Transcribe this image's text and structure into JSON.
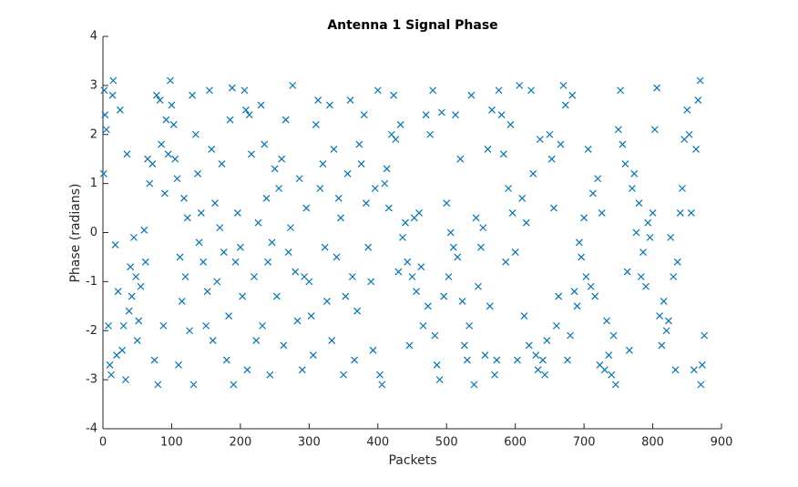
{
  "chart_data": {
    "type": "scatter",
    "title": "Antenna 1 Signal Phase",
    "xlabel": "Packets",
    "ylabel": "Phase (radians)",
    "color": "#0072bd",
    "marker": "x",
    "xlim": [
      0,
      900
    ],
    "xticks": [
      0,
      100,
      200,
      300,
      400,
      500,
      600,
      700,
      800,
      900
    ],
    "ylim": [
      -4,
      4
    ],
    "yticks": [
      -4,
      -3,
      -2,
      -1,
      0,
      1,
      2,
      3,
      4
    ],
    "x": [
      1,
      2,
      3,
      5,
      8,
      10,
      12,
      14,
      15,
      18,
      20,
      22,
      25,
      28,
      30,
      33,
      35,
      38,
      40,
      42,
      45,
      48,
      50,
      52,
      55,
      60,
      62,
      65,
      68,
      72,
      75,
      78,
      80,
      83,
      85,
      88,
      90,
      92,
      95,
      98,
      100,
      103,
      105,
      108,
      110,
      112,
      115,
      118,
      120,
      123,
      126,
      130,
      132,
      135,
      138,
      140,
      143,
      146,
      150,
      152,
      155,
      158,
      160,
      163,
      166,
      170,
      173,
      176,
      180,
      183,
      185,
      188,
      190,
      193,
      196,
      200,
      203,
      206,
      208,
      210,
      213,
      216,
      220,
      223,
      226,
      230,
      232,
      235,
      238,
      240,
      243,
      246,
      250,
      253,
      256,
      260,
      263,
      266,
      270,
      273,
      276,
      280,
      283,
      286,
      290,
      293,
      296,
      300,
      303,
      306,
      310,
      313,
      316,
      320,
      323,
      326,
      330,
      333,
      336,
      340,
      343,
      346,
      350,
      353,
      356,
      360,
      363,
      366,
      370,
      373,
      376,
      380,
      383,
      386,
      390,
      393,
      396,
      400,
      403,
      406,
      410,
      413,
      416,
      420,
      423,
      426,
      430,
      433,
      436,
      440,
      443,
      446,
      450,
      453,
      456,
      460,
      463,
      466,
      470,
      473,
      476,
      480,
      483,
      486,
      490,
      493,
      496,
      500,
      503,
      506,
      510,
      513,
      516,
      520,
      523,
      526,
      530,
      533,
      536,
      540,
      543,
      546,
      550,
      553,
      556,
      560,
      563,
      566,
      570,
      573,
      576,
      580,
      583,
      586,
      590,
      593,
      596,
      600,
      603,
      606,
      610,
      613,
      616,
      620,
      623,
      626,
      630,
      633,
      636,
      640,
      643,
      646,
      650,
      653,
      656,
      660,
      663,
      666,
      670,
      673,
      676,
      680,
      683,
      686,
      690,
      693,
      696,
      700,
      703,
      706,
      710,
      713,
      716,
      720,
      723,
      726,
      730,
      733,
      736,
      740,
      743,
      746,
      750,
      753,
      756,
      760,
      763,
      766,
      770,
      773,
      776,
      780,
      783,
      786,
      790,
      793,
      796,
      800,
      803,
      806,
      810,
      813,
      816,
      820,
      823,
      826,
      830,
      833,
      836,
      840,
      843,
      846,
      850,
      853,
      856,
      860,
      863,
      866,
      869,
      870,
      872,
      875
    ],
    "y": [
      1.2,
      2.9,
      2.4,
      2.1,
      -1.9,
      -2.7,
      -2.9,
      2.8,
      3.1,
      -0.25,
      -2.5,
      -1.2,
      2.5,
      -2.4,
      -1.9,
      -3.0,
      1.6,
      -1.6,
      -0.7,
      -1.3,
      -0.1,
      -0.9,
      -2.2,
      -1.8,
      -1.1,
      0.05,
      -0.6,
      1.5,
      1.0,
      1.4,
      -2.6,
      2.8,
      -3.1,
      2.7,
      1.8,
      -1.9,
      0.8,
      2.3,
      1.6,
      3.1,
      2.6,
      2.2,
      1.5,
      1.1,
      -2.7,
      -0.5,
      -1.4,
      0.7,
      -0.9,
      0.3,
      -2.0,
      2.8,
      -3.1,
      2.0,
      1.2,
      -0.2,
      0.4,
      -0.6,
      -1.9,
      -1.2,
      2.9,
      1.7,
      -2.2,
      0.6,
      -1.0,
      0.1,
      1.4,
      -0.4,
      -2.6,
      -1.7,
      2.3,
      2.95,
      -3.1,
      -0.6,
      0.4,
      -0.3,
      -1.3,
      2.9,
      2.5,
      -2.8,
      2.4,
      1.6,
      -0.9,
      -2.2,
      0.2,
      2.6,
      -1.9,
      1.8,
      0.7,
      -0.6,
      -2.9,
      -0.2,
      1.3,
      -1.3,
      0.9,
      1.5,
      -2.3,
      2.3,
      -0.4,
      0.1,
      3.0,
      -0.8,
      -1.8,
      1.1,
      -2.8,
      -0.9,
      0.5,
      -1.0,
      -1.7,
      -2.5,
      2.2,
      2.7,
      0.9,
      1.4,
      -0.3,
      -1.4,
      2.6,
      -2.2,
      1.7,
      -0.5,
      0.7,
      0.3,
      -2.9,
      -1.3,
      1.2,
      2.7,
      -0.9,
      -2.6,
      -1.6,
      1.8,
      1.4,
      2.4,
      0.6,
      -0.3,
      -1.0,
      -2.4,
      0.9,
      2.9,
      -2.9,
      -3.1,
      1.0,
      1.3,
      0.5,
      2.0,
      2.8,
      1.9,
      -0.8,
      2.2,
      -0.1,
      0.2,
      -0.6,
      -2.3,
      -0.9,
      0.3,
      -1.2,
      0.4,
      -0.7,
      -1.9,
      2.4,
      -1.5,
      2.0,
      2.9,
      -2.1,
      -2.7,
      -3.0,
      2.45,
      -1.3,
      0.6,
      -0.9,
      0.0,
      -0.3,
      2.4,
      -0.5,
      1.5,
      -1.4,
      -2.3,
      -2.6,
      -1.9,
      2.8,
      -3.1,
      0.3,
      -1.1,
      -0.3,
      0.1,
      -2.5,
      1.7,
      -1.5,
      2.5,
      -2.9,
      -2.6,
      2.9,
      2.4,
      1.6,
      -0.6,
      0.9,
      2.2,
      0.4,
      -0.4,
      -2.6,
      3.0,
      0.7,
      -1.7,
      0.2,
      -2.3,
      2.9,
      1.2,
      -2.5,
      -2.8,
      1.9,
      -2.6,
      -2.9,
      -2.2,
      2.0,
      1.5,
      0.5,
      -1.9,
      -1.3,
      1.8,
      3.0,
      2.6,
      -2.6,
      -2.1,
      2.8,
      -1.2,
      -1.5,
      -0.2,
      -0.5,
      0.3,
      -0.9,
      1.7,
      -1.1,
      0.8,
      -1.3,
      1.1,
      -2.7,
      0.4,
      -2.8,
      -1.8,
      -2.5,
      -2.9,
      -2.1,
      -3.1,
      2.1,
      2.9,
      1.8,
      1.4,
      -0.8,
      -2.4,
      0.9,
      1.2,
      0.0,
      0.6,
      -0.9,
      -0.4,
      -1.1,
      0.2,
      -0.1,
      0.4,
      2.1,
      2.95,
      -1.7,
      -2.3,
      -1.4,
      -2.0,
      -1.8,
      -0.1,
      -0.9,
      -2.8,
      -0.6,
      0.4,
      0.9,
      1.9,
      2.5,
      2.0,
      0.4,
      -2.8,
      1.7,
      2.7,
      3.1,
      -3.1,
      -2.7,
      -2.1
    ]
  }
}
